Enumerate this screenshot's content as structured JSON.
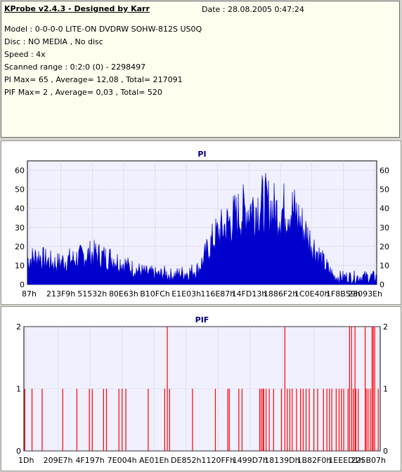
{
  "info": {
    "title": "KProbe v2.4.3 - Designed by Karr",
    "date": "Date : 28.08.2005 0:47:24",
    "lines": [
      "Model : 0-0-0-0 LITE-ON DVDRW SOHW-812S  US0Q",
      "Disc : NO MEDIA , No disc",
      "Speed : 4x",
      "Scanned range : 0:2:0 (0) - 2298497",
      "PI Max= 65 , Average= 12,08 , Total= 217091",
      "PIF Max= 2 , Average= 0,03 , Total= 520"
    ]
  },
  "colors": {
    "pi_fill": "#0000cc",
    "pif_bar": "#ff0000",
    "plot_bg": "#f0f0ff",
    "title": "#00007b"
  },
  "chart_data": [
    {
      "type": "area",
      "title": "PI",
      "ylim": [
        0,
        65
      ],
      "y_ticks": [
        0,
        10,
        20,
        30,
        40,
        50,
        60
      ],
      "x_tick_labels": [
        "87h",
        "213F9h",
        "51532h",
        "80E63h",
        "B10FCh",
        "E1E03h",
        "116E87h",
        "14FD13h",
        "1886F2h",
        "1C0E40h",
        "1F8B59h",
        "23093Eh"
      ],
      "grid": true,
      "series": [
        {
          "values": [
            [
              0,
              13
            ],
            [
              2,
              14
            ],
            [
              4,
              15
            ],
            [
              6,
              13
            ],
            [
              8,
              12
            ],
            [
              10,
              11
            ],
            [
              12,
              12
            ],
            [
              14,
              13
            ],
            [
              16,
              13
            ],
            [
              18,
              14
            ],
            [
              20,
              15
            ],
            [
              22,
              16
            ],
            [
              24,
              16
            ],
            [
              26,
              15
            ],
            [
              28,
              14
            ],
            [
              30,
              14
            ],
            [
              32,
              12
            ],
            [
              34,
              11
            ],
            [
              36,
              9
            ],
            [
              38,
              8
            ],
            [
              40,
              7
            ],
            [
              42,
              6
            ],
            [
              44,
              6
            ],
            [
              46,
              5
            ],
            [
              48,
              6
            ],
            [
              50,
              5
            ],
            [
              52,
              5
            ],
            [
              54,
              6
            ],
            [
              56,
              6
            ],
            [
              58,
              7
            ],
            [
              60,
              8
            ],
            [
              62,
              13
            ],
            [
              64,
              20
            ],
            [
              66,
              25
            ],
            [
              68,
              28
            ],
            [
              70,
              31
            ],
            [
              72,
              34
            ],
            [
              74,
              36
            ],
            [
              76,
              38
            ],
            [
              78,
              40
            ],
            [
              80,
              41
            ],
            [
              82,
              42
            ],
            [
              84,
              42
            ],
            [
              86,
              40
            ],
            [
              88,
              38
            ],
            [
              90,
              39
            ],
            [
              92,
              40
            ],
            [
              94,
              38
            ],
            [
              96,
              33
            ],
            [
              98,
              27
            ],
            [
              100,
              22
            ],
            [
              102,
              17
            ],
            [
              104,
              12
            ],
            [
              106,
              8
            ],
            [
              108,
              4
            ]
          ]
        }
      ]
    },
    {
      "type": "bar",
      "title": "PIF",
      "ylim": [
        0,
        2
      ],
      "y_ticks": [
        0,
        1,
        2
      ],
      "x_tick_labels": [
        "1Dh",
        "209E7h",
        "4F197h",
        "7E004h",
        "AE01Eh",
        "DE852h",
        "1120FFh",
        "1499D7h",
        "18139Dh",
        "1B82F0h",
        "1EEED1h",
        "225B07h"
      ],
      "grid": true,
      "series": [
        {
          "values": [
            [
              0.3,
              1
            ],
            [
              2.8,
              1
            ],
            [
              6.3,
              1
            ],
            [
              13.4,
              1
            ],
            [
              18.3,
              1
            ],
            [
              22.6,
              1
            ],
            [
              23.6,
              1
            ],
            [
              27.5,
              1
            ],
            [
              28.5,
              1
            ],
            [
              32.8,
              1
            ],
            [
              33.9,
              1
            ],
            [
              35.2,
              1
            ],
            [
              42.9,
              1
            ],
            [
              48.6,
              1
            ],
            [
              49.5,
              2
            ],
            [
              50.3,
              1
            ],
            [
              58.2,
              1
            ],
            [
              66.1,
              1
            ],
            [
              70.4,
              1
            ],
            [
              70.9,
              1
            ],
            [
              74.2,
              1
            ],
            [
              75.3,
              1
            ],
            [
              81.4,
              1
            ],
            [
              81.9,
              1
            ],
            [
              82.5,
              1
            ],
            [
              82.8,
              1
            ],
            [
              83.6,
              1
            ],
            [
              84.7,
              1
            ],
            [
              86.2,
              1
            ],
            [
              88.9,
              1
            ],
            [
              90.1,
              2
            ],
            [
              90.9,
              1
            ],
            [
              91.8,
              1
            ],
            [
              92.6,
              1
            ],
            [
              94.1,
              1
            ],
            [
              95.5,
              1
            ],
            [
              96.4,
              1
            ],
            [
              97.4,
              1
            ],
            [
              98.5,
              1
            ],
            [
              100.1,
              1
            ],
            [
              101.4,
              1
            ],
            [
              103.4,
              1
            ],
            [
              104.6,
              1
            ],
            [
              105.5,
              1
            ],
            [
              106.3,
              1
            ],
            [
              107.8,
              1
            ],
            [
              108.8,
              1
            ],
            [
              109.6,
              1
            ],
            [
              110.4,
              1
            ],
            [
              111.9,
              1
            ],
            [
              112.4,
              2
            ],
            [
              113.1,
              2
            ],
            [
              113.7,
              1
            ],
            [
              114.3,
              2
            ],
            [
              114.6,
              1
            ],
            [
              115.4,
              1
            ],
            [
              117.8,
              2
            ],
            [
              118.2,
              1
            ],
            [
              118.8,
              1
            ],
            [
              119.6,
              1
            ],
            [
              120.2,
              2
            ],
            [
              120.6,
              2
            ],
            [
              121.1,
              2
            ],
            [
              122.3,
              1
            ]
          ]
        }
      ]
    }
  ]
}
